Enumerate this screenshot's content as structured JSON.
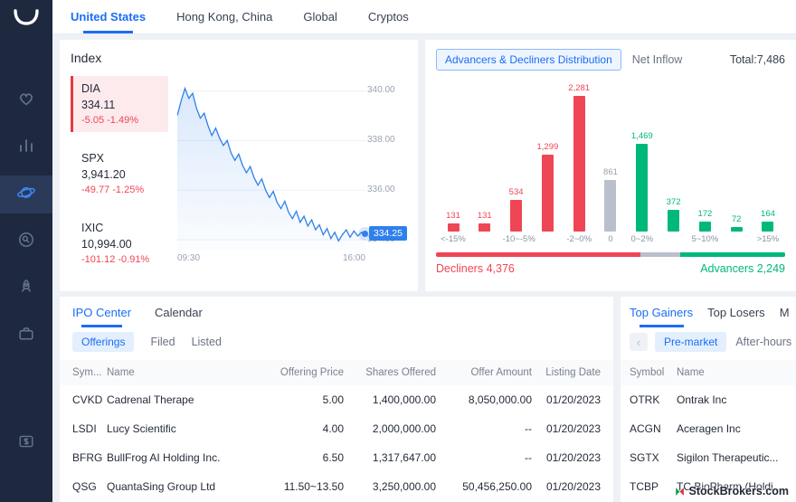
{
  "colors": {
    "accent": "#1a6ef5",
    "red": "#ef4655",
    "green": "#00b87a",
    "grayBar": "#b9c0cc",
    "sidebar": "#1e2940",
    "sidebarActive": "#2b3a58"
  },
  "topbar": {
    "tabs": [
      {
        "label": "United States",
        "active": true
      },
      {
        "label": "Hong Kong, China",
        "active": false
      },
      {
        "label": "Global",
        "active": false
      },
      {
        "label": "Cryptos",
        "active": false
      }
    ]
  },
  "index_panel": {
    "title": "Index",
    "tiles": [
      {
        "symbol": "DIA",
        "price": "334.11",
        "change": "-5.05 -1.49%",
        "selected": true
      },
      {
        "symbol": "SPX",
        "price": "3,941.20",
        "change": "-49.77 -1.25%",
        "selected": false
      },
      {
        "symbol": "IXIC",
        "price": "10,994.00",
        "change": "-101.12 -0.91%",
        "selected": false
      }
    ]
  },
  "chart_data": [
    {
      "type": "line",
      "name": "DIA intraday",
      "x_labels": [
        "09:30",
        "16:00"
      ],
      "y_ticks": [
        {
          "label": "340.00",
          "value": 340
        },
        {
          "label": "338.00",
          "value": 338
        },
        {
          "label": "336.00",
          "value": 336
        },
        {
          "label": "334.00",
          "value": 334
        }
      ],
      "last_label": "334.25",
      "last_value": 334.25,
      "ylim": [
        333.6,
        340.6
      ],
      "points": [
        339.0,
        339.6,
        340.1,
        339.7,
        339.9,
        339.3,
        338.9,
        339.1,
        338.6,
        338.2,
        338.5,
        338.1,
        337.8,
        338.0,
        337.5,
        337.2,
        337.45,
        337.0,
        336.7,
        336.95,
        336.5,
        336.2,
        336.45,
        336.0,
        335.7,
        335.95,
        335.5,
        335.25,
        335.55,
        335.1,
        334.85,
        335.15,
        334.7,
        334.95,
        334.55,
        334.8,
        334.4,
        334.6,
        334.2,
        334.45,
        334.05,
        334.3,
        333.95,
        334.2,
        334.4,
        334.1,
        334.35,
        334.15,
        334.3,
        334.25
      ]
    },
    {
      "type": "bar",
      "title": "Advancers & Decliners Distribution",
      "values": [
        131,
        131,
        534,
        1299,
        2281,
        861,
        1469,
        372,
        172,
        72,
        164
      ],
      "value_labels": [
        "131",
        "131",
        "534",
        "1,299",
        "2,281",
        "861",
        "1,469",
        "372",
        "172",
        "72",
        "164"
      ],
      "colors": [
        "red",
        "red",
        "red",
        "red",
        "red",
        "gray",
        "green",
        "green",
        "green",
        "green",
        "green"
      ],
      "tick_labels": [
        "<-15%",
        "",
        "-10~-5%",
        "",
        "-2~0%",
        "0",
        "0~2%",
        "",
        "5~10%",
        "",
        ">15%"
      ],
      "max": 2281
    }
  ],
  "distribution": {
    "tab_distribution": "Advancers & Decliners Distribution",
    "tab_net_inflow": "Net Inflow",
    "total": "Total:7,486",
    "decliners_label": "Decliners 4,376",
    "advancers_label": "Advancers 2,249",
    "ratio": {
      "decliners_pct": 58.5,
      "unchanged_pct": 11.5,
      "advancers_pct": 30.0
    }
  },
  "ipo": {
    "tabs": [
      {
        "label": "IPO Center",
        "active": true
      },
      {
        "label": "Calendar",
        "active": false
      }
    ],
    "subtabs": [
      {
        "label": "Offerings",
        "active": true
      },
      {
        "label": "Filed",
        "active": false
      },
      {
        "label": "Listed",
        "active": false
      }
    ],
    "columns": [
      "Sym...",
      "Name",
      "Offering Price",
      "Shares Offered",
      "Offer Amount",
      "Listing Date"
    ],
    "rows": [
      [
        "CVKD",
        "Cadrenal Therape",
        "5.00",
        "1,400,000.00",
        "8,050,000.00",
        "01/20/2023"
      ],
      [
        "LSDI",
        "Lucy Scientific",
        "4.00",
        "2,000,000.00",
        "--",
        "01/20/2023"
      ],
      [
        "BFRG",
        "BullFrog AI Holding Inc.",
        "6.50",
        "1,317,647.00",
        "--",
        "01/20/2023"
      ],
      [
        "QSG",
        "QuantaSing Group Ltd",
        "11.50~13.50",
        "3,250,000.00",
        "50,456,250.00",
        "01/20/2023"
      ]
    ]
  },
  "movers": {
    "tabs": [
      {
        "label": "Top Gainers",
        "active": true
      },
      {
        "label": "Top Losers",
        "active": false
      },
      {
        "label": "M",
        "active": false
      }
    ],
    "prev_button": "‹",
    "sessions": [
      {
        "label": "Pre-market",
        "active": true
      },
      {
        "label": "After-hours",
        "active": false
      }
    ],
    "columns": [
      "Symbol",
      "Name"
    ],
    "rows": [
      [
        "OTRK",
        "Ontrak Inc"
      ],
      [
        "ACGN",
        "Aceragen Inc"
      ],
      [
        "SGTX",
        "Sigilon Therapeutic..."
      ],
      [
        "TCBP",
        "TC BioPharm (Holdi..."
      ]
    ]
  },
  "watermark": {
    "text": "StockBrokers.com"
  }
}
